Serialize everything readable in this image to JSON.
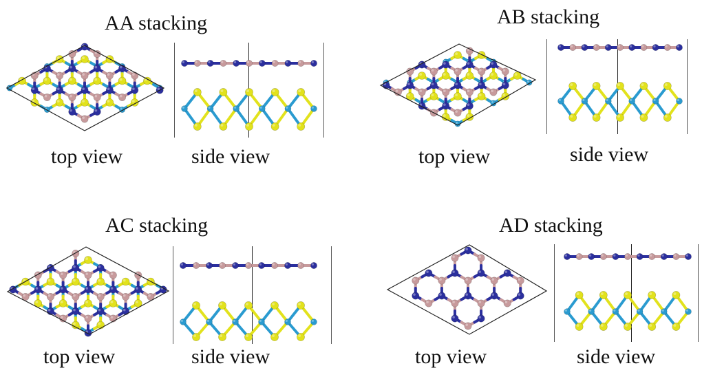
{
  "panels": [
    {
      "id": "aa",
      "title": "AA stacking",
      "top_caption": "top view",
      "side_caption": "side view"
    },
    {
      "id": "ab",
      "title": "AB stacking",
      "top_caption": "top view",
      "side_caption": "side view"
    },
    {
      "id": "ac",
      "title": "AC stacking",
      "top_caption": "top view",
      "side_caption": "side view"
    },
    {
      "id": "ad",
      "title": "AD stacking",
      "top_caption": "top view",
      "side_caption": "side view"
    }
  ],
  "colors": {
    "boron": "#c79a9c",
    "nitrogen": "#2b2f9e",
    "sulfur": "#e2e21c",
    "metal": "#2a9bd0",
    "cell": "#222222"
  }
}
